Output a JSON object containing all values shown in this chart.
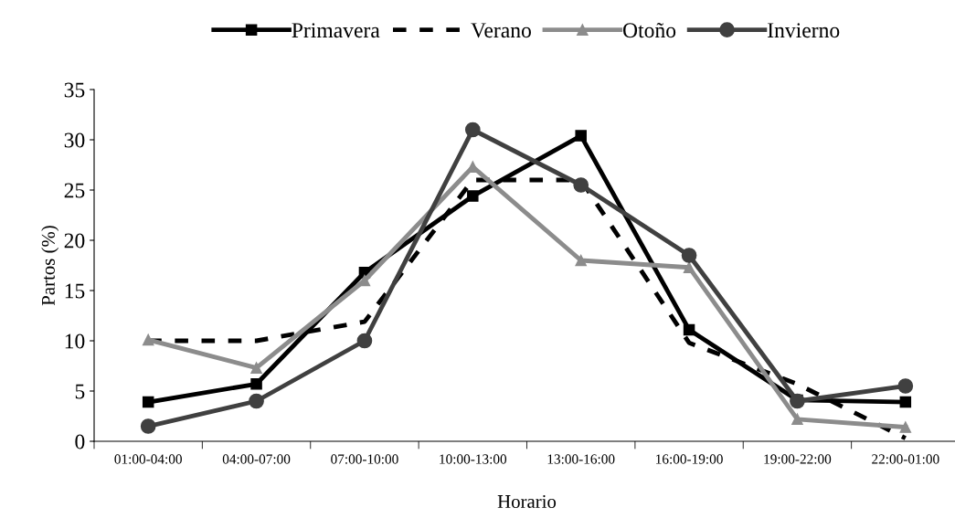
{
  "chart_data": {
    "type": "line",
    "xlabel": "Horario",
    "ylabel": "Partos (%)",
    "categories": [
      "01:00-04:00",
      "04:00-07:00",
      "07:00-10:00",
      "10:00-13:00",
      "13:00-16:00",
      "16:00-19:00",
      "19:00-22:00",
      "22:00-01:00"
    ],
    "series": [
      {
        "name": "Primavera",
        "color": "#000000",
        "marker": "square",
        "line_style": "solid",
        "values": [
          3.9,
          5.7,
          16.8,
          24.4,
          30.4,
          11.1,
          4.1,
          3.9
        ]
      },
      {
        "name": "Verano",
        "color": "#000000",
        "marker": "none",
        "line_style": "dashed",
        "values": [
          10,
          10,
          11.9,
          26,
          26,
          9.8,
          5.7,
          0.3
        ]
      },
      {
        "name": "Otoño",
        "color": "#8c8c8c",
        "marker": "triangle",
        "line_style": "solid",
        "values": [
          10.1,
          7.3,
          16,
          27.3,
          18,
          17.3,
          2.2,
          1.4
        ]
      },
      {
        "name": "Invierno",
        "color": "#404040",
        "marker": "circle",
        "line_style": "solid",
        "values": [
          1.5,
          4,
          10,
          31,
          25.5,
          18.5,
          4,
          5.5
        ]
      }
    ],
    "ylim": [
      0,
      35
    ],
    "yticks": [
      0,
      5,
      10,
      15,
      20,
      25,
      30,
      35
    ],
    "grid": false,
    "legend": "top"
  }
}
